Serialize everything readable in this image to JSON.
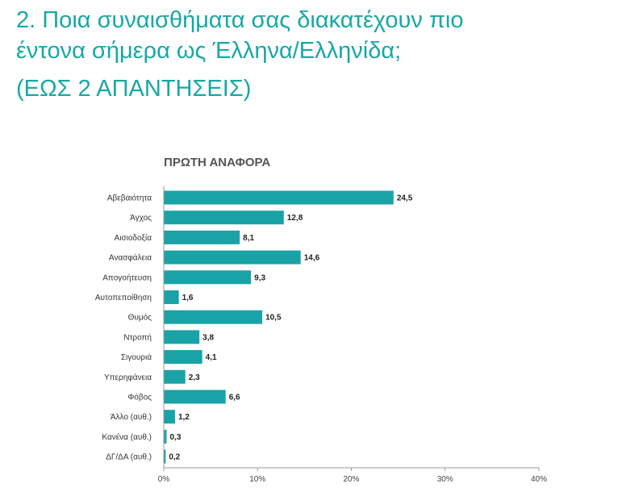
{
  "header": {
    "title_line1": "2. Ποια συναισθήματα σας διακατέχουν πιο",
    "title_line2": "έντονα σήμερα ως Έλληνα/Ελληνίδα;",
    "subtitle": "(ΕΩΣ 2 ΑΠΑΝΤΗΣΕΙΣ)"
  },
  "colors": {
    "accent": "#17a8a6",
    "bar": "#1aa3a6",
    "axis": "#9a9a9a"
  },
  "chart_data": {
    "type": "bar",
    "orientation": "horizontal",
    "title": "ΠΡΩΤΗ ΑΝΑΦΟΡΑ",
    "categories": [
      "Αβεβαιότητα",
      "Άγχος",
      "Αισιοδοξία",
      "Ανασφάλεια",
      "Απογοήτευση",
      "Αυτοπεποίθηση",
      "Θυμός",
      "Ντροπή",
      "Σιγουριά",
      "Υπερηφάνεια",
      "Φόβος",
      "Άλλο (αυθ.)",
      "Κανένα (αυθ.)",
      "ΔΓ/ΔΑ (αυθ.)"
    ],
    "values": [
      24.5,
      12.8,
      8.1,
      14.6,
      9.3,
      1.6,
      10.5,
      3.8,
      4.1,
      2.3,
      6.6,
      1.2,
      0.3,
      0.2
    ],
    "value_labels": [
      "24,5",
      "12,8",
      "8,1",
      "14,6",
      "9,3",
      "1,6",
      "10,5",
      "3,8",
      "4,1",
      "2,3",
      "6,6",
      "1,2",
      "0,3",
      "0,2"
    ],
    "xlim": [
      0,
      40
    ],
    "ticks": [
      0,
      10,
      20,
      30,
      40
    ],
    "tick_labels": [
      "0%",
      "10%",
      "20%",
      "30%",
      "40%"
    ],
    "grid": false,
    "legend": "none"
  }
}
